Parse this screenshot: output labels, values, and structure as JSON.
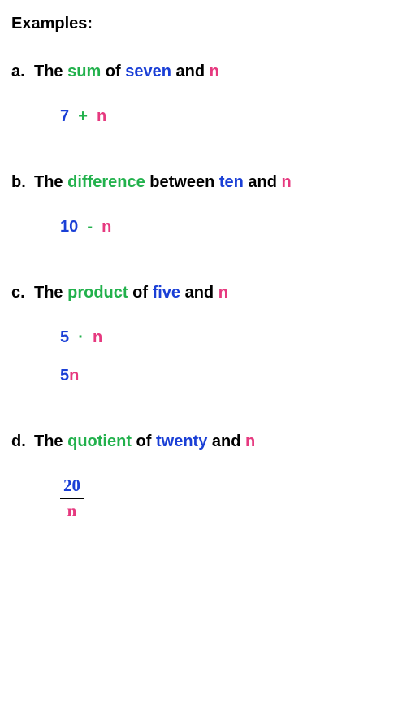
{
  "colors": {
    "black": "#000000",
    "green": "#22b14c",
    "blue": "#1a3fd6",
    "pink": "#e6397f",
    "background": "#ffffff"
  },
  "heading": "Examples:",
  "examples": {
    "a": {
      "label": "a.",
      "statement": {
        "p1": "The ",
        "op": "sum",
        "p2": " of ",
        "num": "seven",
        "p3": " and ",
        "var": "n"
      },
      "expr1": {
        "a": "7",
        "op": "  +  ",
        "b": "n"
      }
    },
    "b": {
      "label": "b.",
      "statement": {
        "p1": "The ",
        "op": "difference",
        "p2": " between ",
        "num": "ten",
        "p3": " and ",
        "var": "n"
      },
      "expr1": {
        "a": "10",
        "op": "  -  ",
        "b": "n"
      }
    },
    "c": {
      "label": "c.",
      "statement": {
        "p1": "The ",
        "op": "product",
        "p2": " of ",
        "num": "five",
        "p3": " and ",
        "var": "n"
      },
      "expr1": {
        "a": "5",
        "op": "  ·  ",
        "b": "n"
      },
      "expr2": {
        "a": "5",
        "b": "n"
      }
    },
    "d": {
      "label": "d.",
      "statement": {
        "p1": "The ",
        "op": "quotient",
        "p2": " of ",
        "num": "twenty",
        "p3": " and ",
        "var": "n"
      },
      "frac": {
        "num": "20",
        "den": "n"
      }
    }
  }
}
